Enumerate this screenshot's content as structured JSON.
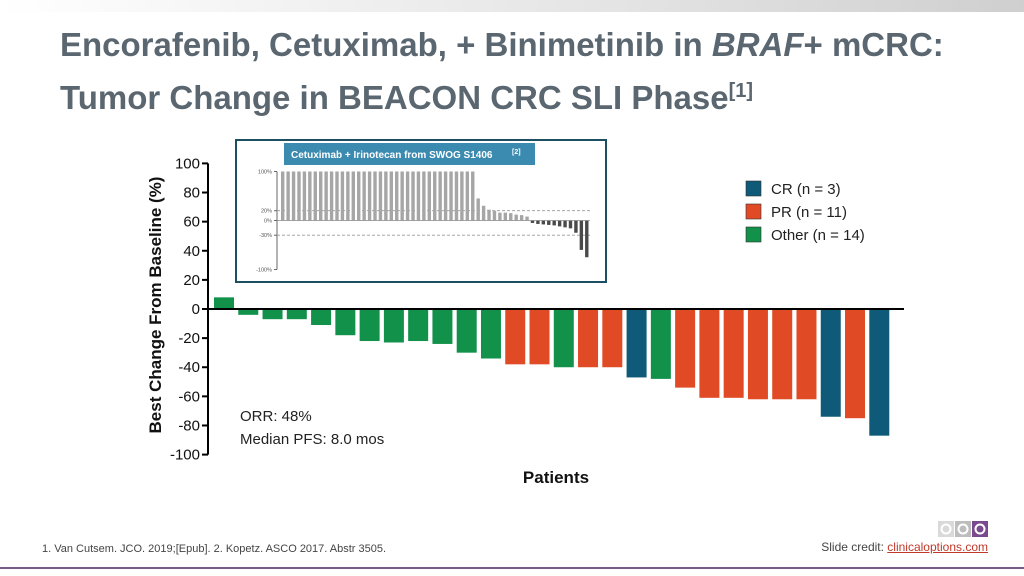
{
  "title": {
    "part1": "Encorafenib, Cetuximab, + Binimetinib in ",
    "italic": "BRAF",
    "part2": "+ mCRC:",
    "line2": "Tumor Change in BEACON CRC SLI Phase",
    "ref": "[1]"
  },
  "footnote": "1. Van Cutsem. JCO. 2019;[Epub]. 2. Kopetz. ASCO 2017. Abstr 3505.",
  "credit": {
    "label": "Slide credit: ",
    "link": "clinicaloptions.com"
  },
  "colors": {
    "CR": "#0e5a78",
    "PR": "#e04a24",
    "Other": "#11914a",
    "title": "#5b6770"
  },
  "chart_data": {
    "type": "bar",
    "ylabel": "Best Change From Baseline (%)",
    "xlabel": "Patients",
    "ylim": [
      -100,
      100
    ],
    "yticks": [
      100,
      80,
      60,
      40,
      20,
      0,
      -20,
      -40,
      -60,
      -80,
      -100
    ],
    "legend": {
      "placement": "top-right",
      "entries": [
        {
          "key": "CR",
          "label": "CR (n = 3)"
        },
        {
          "key": "PR",
          "label": "PR (n = 11)"
        },
        {
          "key": "Other",
          "label": "Other (n = 14)"
        }
      ]
    },
    "annotations": [
      "ORR: 48%",
      "Median PFS: 8.0 mos"
    ],
    "values": [
      8,
      -4,
      -7,
      -7,
      -11,
      -18,
      -22,
      -23,
      -22,
      -24,
      -30,
      -34,
      -38,
      -38,
      -40,
      -40,
      -40,
      -47,
      -48,
      -54,
      -61,
      -61,
      -62,
      -62,
      -62,
      -74,
      -75,
      -87
    ],
    "response": [
      "Other",
      "Other",
      "Other",
      "Other",
      "Other",
      "Other",
      "Other",
      "Other",
      "Other",
      "Other",
      "Other",
      "Other",
      "PR",
      "PR",
      "Other",
      "PR",
      "PR",
      "CR",
      "Other",
      "PR",
      "PR",
      "PR",
      "PR",
      "PR",
      "PR",
      "CR",
      "PR",
      "CR"
    ]
  },
  "inset": {
    "title": "Cetuximab + Irinotecan from SWOG S1406",
    "ref": "[2]",
    "yticks": [
      "100%",
      "20%",
      "0%",
      "-30%",
      "-100%"
    ],
    "ylim": [
      -100,
      100
    ],
    "reference_lines": [
      20,
      -30
    ],
    "values": [
      100,
      100,
      100,
      100,
      100,
      100,
      100,
      100,
      100,
      100,
      100,
      100,
      100,
      100,
      100,
      100,
      100,
      100,
      100,
      100,
      100,
      100,
      100,
      100,
      100,
      100,
      100,
      100,
      100,
      100,
      100,
      100,
      100,
      100,
      100,
      100,
      45,
      30,
      22,
      20,
      16,
      16,
      15,
      12,
      11,
      8,
      -5,
      -7,
      -8,
      -9,
      -10,
      -12,
      -14,
      -16,
      -25,
      -60,
      -75
    ]
  }
}
